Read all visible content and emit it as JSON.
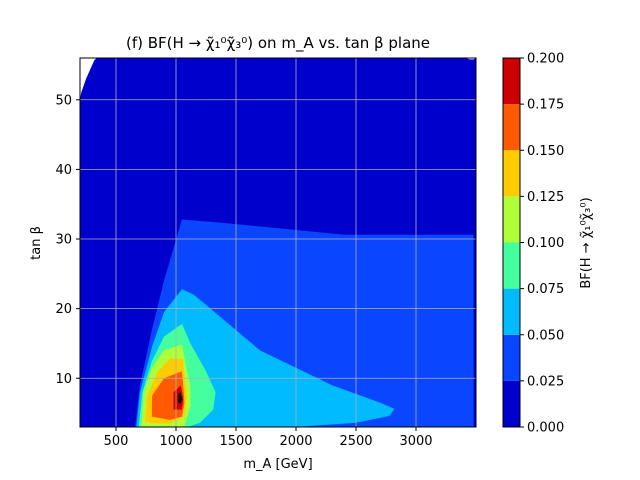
{
  "chart_data": {
    "type": "heatmap",
    "title": "(f) BF(H → χ̃₁⁰χ̃₃⁰) on m_A vs. tan β plane",
    "xlabel": "m_A [GeV]",
    "ylabel": "tan β",
    "colorbar_label": "BF(H → χ̃₁⁰χ̃₃⁰)",
    "xlim": [
      200,
      3500
    ],
    "ylim": [
      3,
      56
    ],
    "xticks": [
      "500",
      "1000",
      "1500",
      "2000",
      "2500",
      "3000"
    ],
    "xtick_values": [
      500,
      1000,
      1500,
      2000,
      2500,
      3000
    ],
    "yticks": [
      "10",
      "20",
      "30",
      "40",
      "50"
    ],
    "ytick_values": [
      10,
      20,
      30,
      40,
      50
    ],
    "grid": true,
    "colorbar_ticks": [
      "0.000",
      "0.025",
      "0.050",
      "0.075",
      "0.100",
      "0.125",
      "0.150",
      "0.175",
      "0.200"
    ],
    "levels": [
      0.0,
      0.025,
      0.05,
      0.075,
      0.1,
      0.125,
      0.15,
      0.175,
      0.2
    ],
    "level_colors": [
      "#0000cd",
      "#0a46ff",
      "#00bbff",
      "#44ff9e",
      "#aeff3a",
      "#ffcc00",
      "#ff5a00",
      "#cc0000"
    ],
    "contours": [
      {
        "level": 0.025,
        "polygon": [
          [
            660,
            3
          ],
          [
            700,
            9
          ],
          [
            800,
            17
          ],
          [
            900,
            24
          ],
          [
            1050,
            32.8
          ],
          [
            1400,
            32.3
          ],
          [
            2000,
            31.3
          ],
          [
            2400,
            30.6
          ],
          [
            2420,
            30.6
          ],
          [
            3480,
            30.6
          ],
          [
            3480,
            3
          ]
        ]
      },
      {
        "level": 0.05,
        "polygon": [
          [
            670,
            3
          ],
          [
            700,
            8
          ],
          [
            800,
            14.5
          ],
          [
            900,
            19.5
          ],
          [
            1050,
            22.8
          ],
          [
            1150,
            22
          ],
          [
            1700,
            14
          ],
          [
            2300,
            9
          ],
          [
            2700,
            6.5
          ],
          [
            2820,
            5.6
          ],
          [
            2780,
            4.6
          ],
          [
            2500,
            3.6
          ],
          [
            2000,
            3
          ]
        ]
      },
      {
        "level": 0.075,
        "polygon": [
          [
            690,
            3
          ],
          [
            720,
            8
          ],
          [
            800,
            12.5
          ],
          [
            900,
            16
          ],
          [
            1050,
            17.8
          ],
          [
            1120,
            15
          ],
          [
            1250,
            11
          ],
          [
            1330,
            8
          ],
          [
            1310,
            5.5
          ],
          [
            1200,
            3.6
          ],
          [
            1100,
            3
          ]
        ]
      },
      {
        "level": 0.1,
        "polygon": [
          [
            710,
            3
          ],
          [
            730,
            8
          ],
          [
            800,
            11.5
          ],
          [
            900,
            14
          ],
          [
            1050,
            14.8
          ],
          [
            1080,
            12
          ],
          [
            1120,
            9
          ],
          [
            1120,
            6
          ],
          [
            1070,
            3
          ]
        ]
      },
      {
        "level": 0.125,
        "polygon": [
          [
            740,
            3.8
          ],
          [
            760,
            7.5
          ],
          [
            850,
            11
          ],
          [
            950,
            12.8
          ],
          [
            1060,
            12.8
          ],
          [
            1070,
            10
          ],
          [
            1090,
            7.5
          ],
          [
            1070,
            4.5
          ],
          [
            950,
            3.5
          ],
          [
            800,
            3.5
          ]
        ]
      },
      {
        "level": 0.15,
        "polygon": [
          [
            800,
            4.5
          ],
          [
            800,
            7.5
          ],
          [
            900,
            10
          ],
          [
            1050,
            11
          ],
          [
            1060,
            9
          ],
          [
            1070,
            6.5
          ],
          [
            1050,
            4.5
          ],
          [
            950,
            4
          ]
        ]
      },
      {
        "level": 0.175,
        "polygon": [
          [
            980,
            5.5
          ],
          [
            980,
            8
          ],
          [
            1040,
            9
          ],
          [
            1060,
            7
          ],
          [
            1050,
            5.5
          ]
        ]
      },
      {
        "level": 0.2,
        "polygon": [
          [
            1020,
            6.5
          ],
          [
            1020,
            7.8
          ],
          [
            1040,
            8
          ],
          [
            1050,
            7
          ],
          [
            1040,
            6.3
          ]
        ]
      }
    ],
    "uncovered_regions": [
      {
        "polygon": [
          [
            200,
            56
          ],
          [
            200,
            50
          ],
          [
            210,
            51
          ],
          [
            250,
            53
          ],
          [
            320,
            55.7
          ],
          [
            340,
            56
          ]
        ]
      },
      {
        "polygon": [
          [
            3410,
            56
          ],
          [
            3450,
            55.8
          ],
          [
            3480,
            55.8
          ],
          [
            3500,
            56
          ]
        ]
      }
    ]
  }
}
